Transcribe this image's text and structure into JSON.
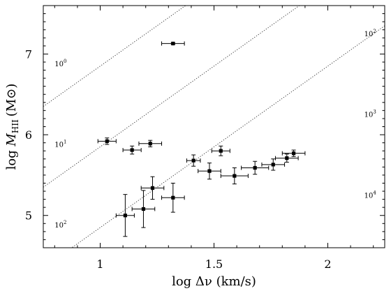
{
  "chart_data": {
    "type": "scatter",
    "xlabel": "log Δν (km/s)",
    "ylabel": "log M_HII (M⊙)",
    "ylabel_main": "log ",
    "ylabel_var": "M",
    "ylabel_sub": "HII",
    "ylabel_unit": "(M⊙)",
    "xlim": [
      0.75,
      2.25
    ],
    "ylim": [
      4.6,
      7.6
    ],
    "xticks": [
      1,
      1.5,
      2
    ],
    "xtick_labels": [
      "1",
      "1.5",
      "2"
    ],
    "yticks": [
      5,
      6,
      7
    ],
    "ytick_labels": [
      "5",
      "6",
      "7"
    ],
    "grid": false,
    "reference_lines": [
      {
        "base": "10",
        "exp": "0",
        "intercept": 4.85,
        "label_at": [
          0.8,
          6.85
        ],
        "edge_label": false
      },
      {
        "base": "10",
        "exp": "1",
        "intercept": 3.85,
        "label_at": [
          0.8,
          5.85
        ],
        "edge_label": false
      },
      {
        "base": "10",
        "exp": "2",
        "intercept": 2.85,
        "label_at": [
          0.8,
          4.85
        ],
        "edge_label": false
      },
      {
        "base": "10",
        "exp": "2",
        "intercept": 4.85,
        "label_at": [
          2.16,
          7.22
        ],
        "edge_label": true
      },
      {
        "base": "10",
        "exp": "3",
        "intercept": 3.85,
        "label_at": [
          2.16,
          6.22
        ],
        "edge_label": true
      },
      {
        "base": "10",
        "exp": "4",
        "intercept": 2.85,
        "label_at": [
          2.16,
          5.22
        ],
        "edge_label": true
      }
    ],
    "reference_slope": 2,
    "points": [
      {
        "x": 1.03,
        "y": 5.92,
        "xerr": 0.04,
        "yerr": 0.04
      },
      {
        "x": 1.14,
        "y": 5.81,
        "xerr": 0.04,
        "yerr": 0.05
      },
      {
        "x": 1.22,
        "y": 5.89,
        "xerr": 0.05,
        "yerr": 0.04
      },
      {
        "x": 1.32,
        "y": 7.13,
        "xerr": 0.05,
        "yerr": 0.01
      },
      {
        "x": 1.41,
        "y": 5.68,
        "xerr": 0.03,
        "yerr": 0.07
      },
      {
        "x": 1.48,
        "y": 5.55,
        "xerr": 0.05,
        "yerr": 0.1
      },
      {
        "x": 1.53,
        "y": 5.8,
        "xerr": 0.04,
        "yerr": 0.06
      },
      {
        "x": 1.59,
        "y": 5.49,
        "xerr": 0.06,
        "yerr": 0.1
      },
      {
        "x": 1.68,
        "y": 5.59,
        "xerr": 0.06,
        "yerr": 0.08
      },
      {
        "x": 1.76,
        "y": 5.63,
        "xerr": 0.05,
        "yerr": 0.07
      },
      {
        "x": 1.82,
        "y": 5.71,
        "xerr": 0.05,
        "yerr": 0.05
      },
      {
        "x": 1.85,
        "y": 5.77,
        "xerr": 0.05,
        "yerr": 0.04
      },
      {
        "x": 1.11,
        "y": 5.0,
        "xerr": 0.04,
        "yerr": 0.26
      },
      {
        "x": 1.19,
        "y": 5.08,
        "xerr": 0.05,
        "yerr": 0.23
      },
      {
        "x": 1.23,
        "y": 5.34,
        "xerr": 0.05,
        "yerr": 0.14
      },
      {
        "x": 1.32,
        "y": 5.22,
        "xerr": 0.05,
        "yerr": 0.18
      }
    ]
  }
}
